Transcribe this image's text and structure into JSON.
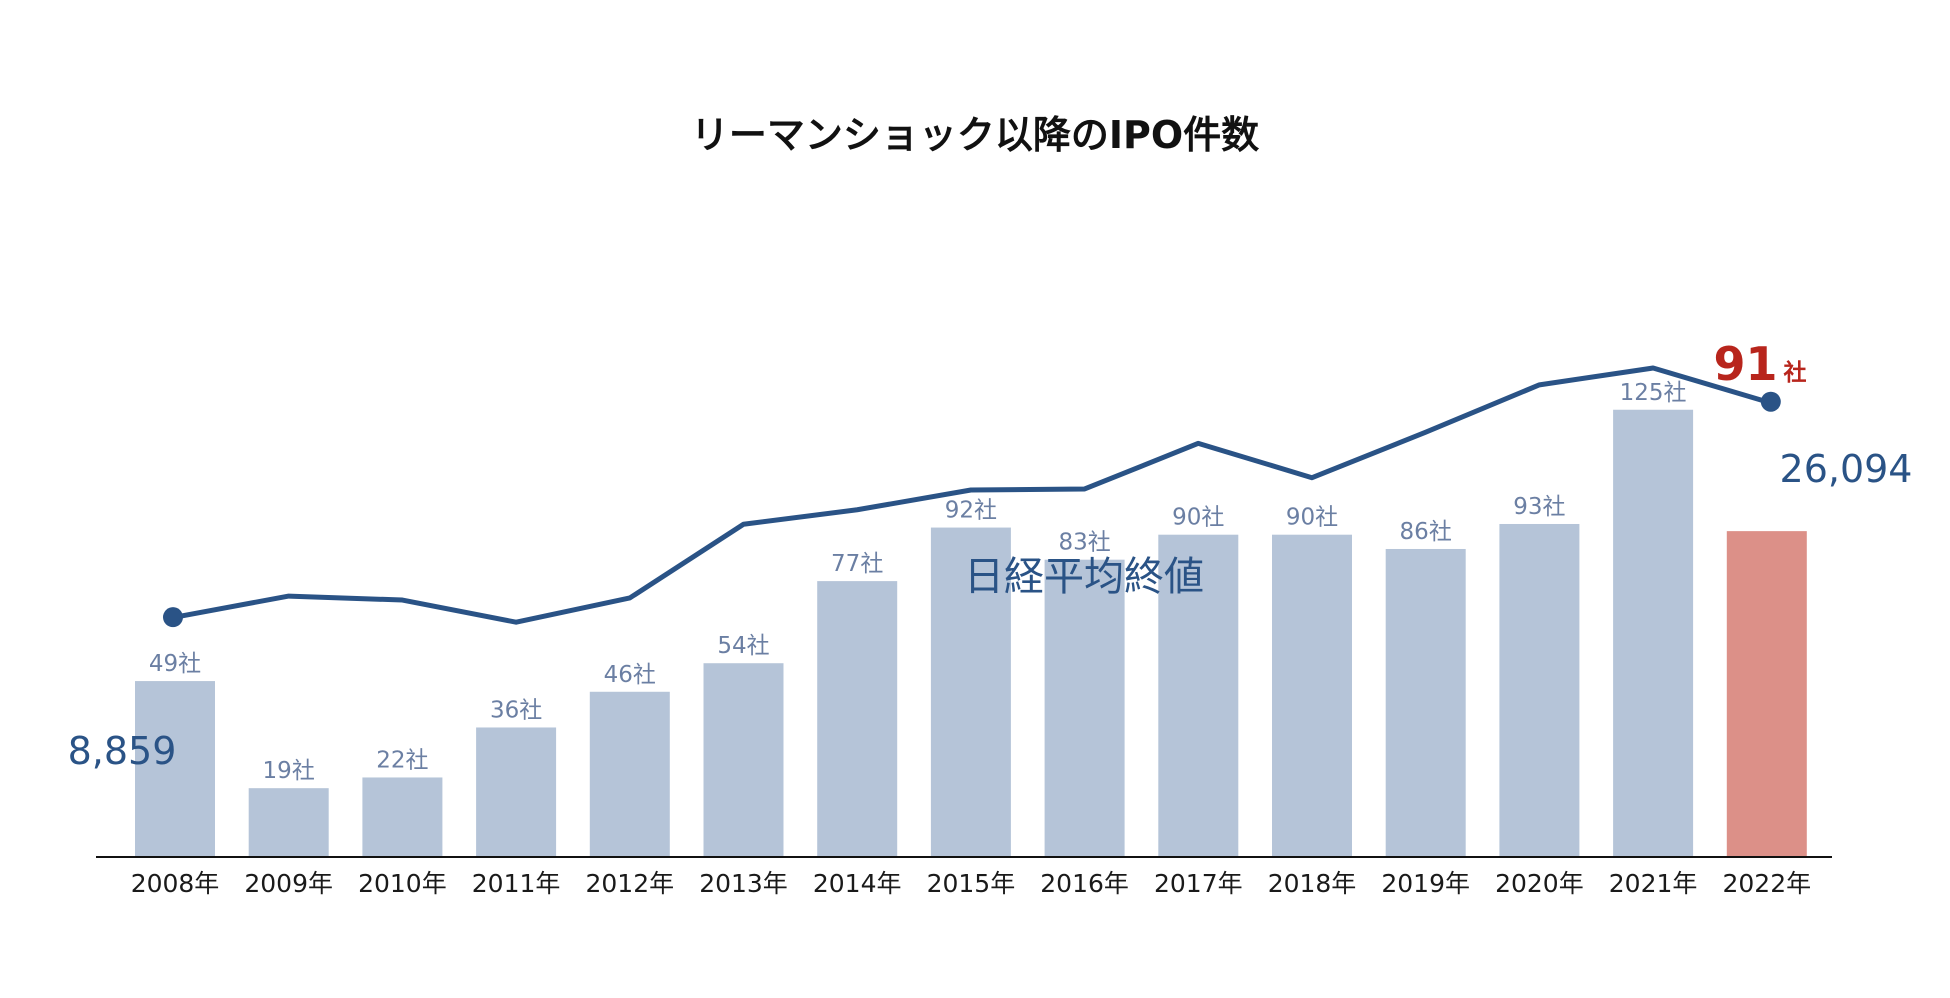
{
  "chart_data": {
    "type": "bar",
    "title": "リーマンショック以降のIPO件数",
    "categories": [
      "2008年",
      "2009年",
      "2010年",
      "2011年",
      "2012年",
      "2013年",
      "2014年",
      "2015年",
      "2016年",
      "2017年",
      "2018年",
      "2019年",
      "2020年",
      "2021年",
      "2022年"
    ],
    "series": [
      {
        "type": "bar",
        "unit": "社",
        "values": [
          49,
          19,
          22,
          36,
          46,
          54,
          77,
          92,
          83,
          90,
          90,
          86,
          93,
          125,
          91
        ],
        "value_labels": [
          "49社",
          "19社",
          "22社",
          "36社",
          "46社",
          "54社",
          "77社",
          "92社",
          "83社",
          "90社",
          "90社",
          "86社",
          "93社",
          "125社",
          ""
        ],
        "color": "#b5c4d8",
        "highlight_color": "#dc9088",
        "highlight_index": 14
      },
      {
        "type": "line",
        "name": "日経平均終値",
        "values": [
          8859,
          10546,
          10229,
          8455,
          10395,
          16291,
          17451,
          19034,
          19114,
          22765,
          20015,
          23657,
          27444,
          28792,
          26094
        ],
        "color": "#2a5386",
        "end_labels": [
          "8,859",
          "26,094"
        ]
      }
    ],
    "highlight": {
      "value": "91",
      "unit": "社",
      "color": "#b8251c"
    },
    "ylim_bars": [
      0,
      140
    ],
    "ylim_line": [
      0,
      46000
    ],
    "grid": false,
    "legend": "none"
  }
}
